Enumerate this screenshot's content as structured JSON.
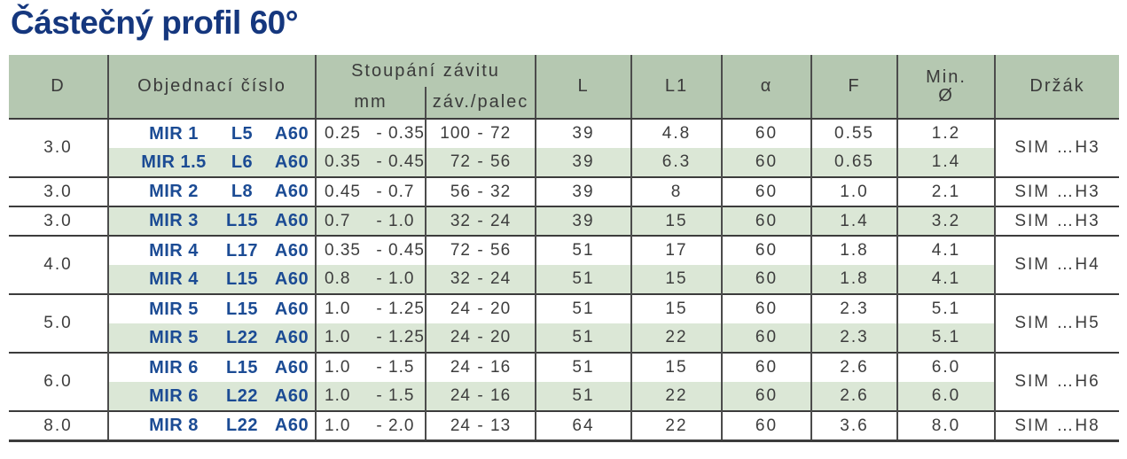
{
  "title": "Částečný profil 60°",
  "colors": {
    "title_navy": "#15377e",
    "order_navy": "#1b4b94",
    "header_green": "#b5c8b1",
    "stripe_green": "#dbe7d6",
    "min_teal": "#3f9fa4",
    "line_dark": "#3c3c3c"
  },
  "table": {
    "headers": {
      "d": "D",
      "order": "Objednací číslo",
      "pitch_group": "Stoupání závitu",
      "pitch_mm": "mm",
      "pitch_tpi": "záv./palec",
      "l": "L",
      "l1": "L1",
      "alpha": "α",
      "f": "F",
      "min_line1": "Min.",
      "min_line2": "Ø",
      "holder": "Držák"
    },
    "range_dash": "-",
    "groups": [
      {
        "d": "3.0",
        "holder": "SIM …H3",
        "rows": [
          {
            "order": [
              "MIR 1",
              "L5",
              "A60"
            ],
            "mm": [
              "0.25",
              "0.35"
            ],
            "tpi": [
              "100",
              "72"
            ],
            "l": "39",
            "l1": "4.8",
            "alpha": "60",
            "f": "0.55",
            "min": "1.2"
          },
          {
            "order": [
              "MIR 1.5",
              "L6",
              "A60"
            ],
            "mm": [
              "0.35",
              "0.45"
            ],
            "tpi": [
              "72",
              "56"
            ],
            "l": "39",
            "l1": "6.3",
            "alpha": "60",
            "f": "0.65",
            "min": "1.4"
          }
        ]
      },
      {
        "d": "3.0",
        "holder": "SIM …H3",
        "rows": [
          {
            "order": [
              "MIR 2",
              "L8",
              "A60"
            ],
            "mm": [
              "0.45",
              "0.7"
            ],
            "tpi": [
              "56",
              "32"
            ],
            "l": "39",
            "l1": "8",
            "alpha": "60",
            "f": "1.0",
            "min": "2.1"
          }
        ]
      },
      {
        "d": "3.0",
        "holder": "SIM …H3",
        "rows": [
          {
            "order": [
              "MIR 3",
              "L15",
              "A60"
            ],
            "mm": [
              "0.7",
              "1.0"
            ],
            "tpi": [
              "32",
              "24"
            ],
            "l": "39",
            "l1": "15",
            "alpha": "60",
            "f": "1.4",
            "min": "3.2"
          }
        ]
      },
      {
        "d": "4.0",
        "holder": "SIM …H4",
        "rows": [
          {
            "order": [
              "MIR 4",
              "L17",
              "A60"
            ],
            "mm": [
              "0.35",
              "0.45"
            ],
            "tpi": [
              "72",
              "56"
            ],
            "l": "51",
            "l1": "17",
            "alpha": "60",
            "f": "1.8",
            "min": "4.1"
          },
          {
            "order": [
              "MIR 4",
              "L15",
              "A60"
            ],
            "mm": [
              "0.8",
              "1.0"
            ],
            "tpi": [
              "32",
              "24"
            ],
            "l": "51",
            "l1": "15",
            "alpha": "60",
            "f": "1.8",
            "min": "4.1"
          }
        ]
      },
      {
        "d": "5.0",
        "holder": "SIM …H5",
        "rows": [
          {
            "order": [
              "MIR 5",
              "L15",
              "A60"
            ],
            "mm": [
              "1.0",
              "1.25"
            ],
            "tpi": [
              "24",
              "20"
            ],
            "l": "51",
            "l1": "15",
            "alpha": "60",
            "f": "2.3",
            "min": "5.1"
          },
          {
            "order": [
              "MIR 5",
              "L22",
              "A60"
            ],
            "mm": [
              "1.0",
              "1.25"
            ],
            "tpi": [
              "24",
              "20"
            ],
            "l": "51",
            "l1": "22",
            "alpha": "60",
            "f": "2.3",
            "min": "5.1"
          }
        ]
      },
      {
        "d": "6.0",
        "holder": "SIM …H6",
        "rows": [
          {
            "order": [
              "MIR 6",
              "L15",
              "A60"
            ],
            "mm": [
              "1.0",
              "1.5"
            ],
            "tpi": [
              "24",
              "16"
            ],
            "l": "51",
            "l1": "15",
            "alpha": "60",
            "f": "2.6",
            "min": "6.0"
          },
          {
            "order": [
              "MIR 6",
              "L22",
              "A60"
            ],
            "mm": [
              "1.0",
              "1.5"
            ],
            "tpi": [
              "24",
              "16"
            ],
            "l": "51",
            "l1": "22",
            "alpha": "60",
            "f": "2.6",
            "min": "6.0"
          }
        ]
      },
      {
        "d": "8.0",
        "holder": "SIM …H8",
        "rows": [
          {
            "order": [
              "MIR 8",
              "L22",
              "A60"
            ],
            "mm": [
              "1.0",
              "2.0"
            ],
            "tpi": [
              "24",
              "13"
            ],
            "l": "64",
            "l1": "22",
            "alpha": "60",
            "f": "3.6",
            "min": "8.0"
          }
        ]
      }
    ]
  }
}
